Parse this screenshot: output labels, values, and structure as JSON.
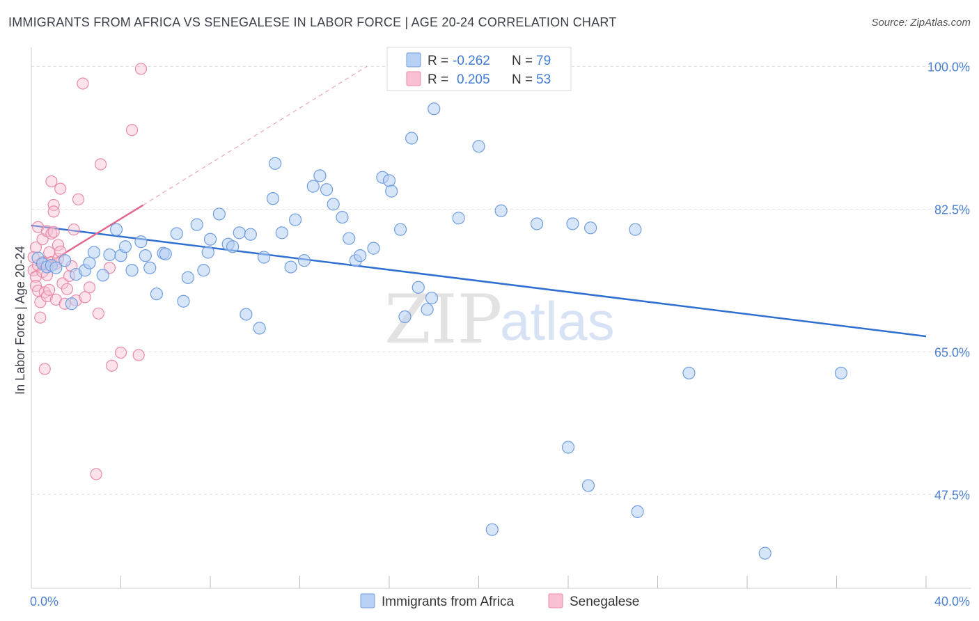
{
  "title": "IMMIGRANTS FROM AFRICA VS SENEGALESE IN LABOR FORCE | AGE 20-24 CORRELATION CHART",
  "source": "Source: ZipAtlas.com",
  "watermark": {
    "zip": "ZIP",
    "atlas": "atlas"
  },
  "legend": {
    "r_label": "R =",
    "n_label": "N =",
    "entries": [
      {
        "r": "-0.262",
        "n": "79",
        "fill": "#b7d0f4",
        "stroke": "#6f9de0"
      },
      {
        "r": "0.205",
        "n": "53",
        "fill": "#f9c0d3",
        "stroke": "#e98aa8"
      }
    ]
  },
  "chart_data": {
    "type": "scatter",
    "ylabel": "In Labor Force | Age 20-24",
    "xlim": [
      0,
      40
    ],
    "ylim": [
      36,
      102
    ],
    "x_tick_labels": [
      "0.0%",
      "40.0%"
    ],
    "y_ticks": [
      47.5,
      65.0,
      82.5,
      100.0
    ],
    "y_tick_labels": [
      "47.5%",
      "65.0%",
      "82.5%",
      "100.0%"
    ],
    "grid": "horizontal dashed",
    "series": [
      {
        "name": "Immigrants from Africa",
        "color": "#6f9de0",
        "fill": "rgba(183,208,244,0.55)",
        "line_color": "#2f6fd1",
        "trend": {
          "x": [
            0,
            40
          ],
          "y": [
            80.5,
            66.9
          ]
        },
        "points": [
          [
            0.3,
            76.5
          ],
          [
            0.5,
            75.8
          ],
          [
            0.7,
            75.4
          ],
          [
            0.9,
            75.6
          ],
          [
            1.1,
            75.3
          ],
          [
            1.5,
            76.2
          ],
          [
            1.8,
            70.9
          ],
          [
            2.0,
            74.5
          ],
          [
            2.4,
            75.0
          ],
          [
            2.6,
            75.9
          ],
          [
            2.8,
            77.2
          ],
          [
            3.2,
            74.4
          ],
          [
            3.5,
            76.9
          ],
          [
            3.8,
            80.0
          ],
          [
            4.0,
            76.8
          ],
          [
            4.2,
            77.9
          ],
          [
            4.5,
            75.0
          ],
          [
            4.9,
            78.5
          ],
          [
            5.1,
            76.8
          ],
          [
            5.3,
            75.3
          ],
          [
            5.6,
            72.1
          ],
          [
            5.9,
            77.1
          ],
          [
            6.0,
            77.0
          ],
          [
            6.5,
            79.5
          ],
          [
            6.8,
            71.2
          ],
          [
            7.0,
            74.1
          ],
          [
            7.4,
            80.6
          ],
          [
            7.7,
            75.0
          ],
          [
            7.9,
            77.2
          ],
          [
            8.0,
            78.8
          ],
          [
            8.4,
            81.9
          ],
          [
            8.8,
            78.2
          ],
          [
            9.0,
            77.9
          ],
          [
            9.3,
            79.6
          ],
          [
            9.6,
            69.6
          ],
          [
            9.8,
            79.4
          ],
          [
            10.2,
            67.9
          ],
          [
            10.4,
            76.6
          ],
          [
            10.8,
            83.8
          ],
          [
            10.9,
            88.1
          ],
          [
            11.2,
            79.6
          ],
          [
            11.6,
            75.4
          ],
          [
            11.8,
            81.2
          ],
          [
            12.2,
            76.2
          ],
          [
            12.6,
            85.3
          ],
          [
            12.9,
            86.6
          ],
          [
            13.2,
            84.9
          ],
          [
            13.5,
            83.1
          ],
          [
            13.9,
            81.5
          ],
          [
            14.2,
            78.9
          ],
          [
            14.5,
            76.2
          ],
          [
            14.7,
            76.8
          ],
          [
            15.3,
            77.7
          ],
          [
            15.7,
            86.4
          ],
          [
            16.0,
            86.0
          ],
          [
            16.1,
            84.7
          ],
          [
            16.5,
            80.0
          ],
          [
            16.7,
            69.3
          ],
          [
            17.0,
            91.2
          ],
          [
            17.3,
            72.9
          ],
          [
            17.7,
            70.2
          ],
          [
            17.9,
            71.6
          ],
          [
            18.0,
            94.8
          ],
          [
            18.0,
            100.0
          ],
          [
            19.1,
            81.4
          ],
          [
            20.0,
            90.2
          ],
          [
            21.0,
            100.0
          ],
          [
            21.0,
            82.3
          ],
          [
            22.6,
            80.7
          ],
          [
            24.2,
            80.7
          ],
          [
            25.0,
            80.2
          ],
          [
            27.0,
            80.0
          ],
          [
            24.0,
            53.3
          ],
          [
            24.9,
            48.6
          ],
          [
            20.6,
            43.2
          ],
          [
            27.1,
            45.4
          ],
          [
            29.4,
            62.4
          ],
          [
            32.8,
            40.3
          ],
          [
            36.2,
            62.4
          ]
        ]
      },
      {
        "name": "Senegalese",
        "color": "#e98aa8",
        "fill": "rgba(249,192,211,0.45)",
        "line_color": "#e0688f",
        "trend_solid": {
          "x": [
            0,
            5
          ],
          "y": [
            74.6,
            83.0
          ]
        },
        "trend_dashed": {
          "x": [
            5,
            15
          ],
          "y": [
            83.0,
            100.0
          ]
        },
        "points": [
          [
            0.1,
            75.0
          ],
          [
            0.1,
            76.6
          ],
          [
            0.2,
            77.8
          ],
          [
            0.2,
            74.2
          ],
          [
            0.2,
            73.1
          ],
          [
            0.3,
            80.3
          ],
          [
            0.3,
            72.5
          ],
          [
            0.3,
            75.6
          ],
          [
            0.4,
            69.2
          ],
          [
            0.4,
            71.1
          ],
          [
            0.5,
            74.8
          ],
          [
            0.5,
            76.0
          ],
          [
            0.5,
            78.8
          ],
          [
            0.6,
            62.9
          ],
          [
            0.6,
            72.3
          ],
          [
            0.6,
            75.9
          ],
          [
            0.7,
            74.4
          ],
          [
            0.7,
            79.8
          ],
          [
            0.7,
            71.8
          ],
          [
            0.8,
            72.6
          ],
          [
            0.8,
            77.2
          ],
          [
            0.9,
            76.0
          ],
          [
            0.9,
            79.5
          ],
          [
            0.9,
            85.9
          ],
          [
            1.0,
            83.0
          ],
          [
            1.0,
            79.7
          ],
          [
            1.0,
            82.2
          ],
          [
            1.1,
            75.8
          ],
          [
            1.1,
            71.4
          ],
          [
            1.2,
            76.4
          ],
          [
            1.2,
            78.1
          ],
          [
            1.3,
            77.3
          ],
          [
            1.3,
            85.0
          ],
          [
            1.4,
            73.4
          ],
          [
            1.5,
            70.9
          ],
          [
            1.6,
            72.7
          ],
          [
            1.7,
            74.3
          ],
          [
            1.8,
            75.5
          ],
          [
            1.9,
            80.0
          ],
          [
            2.0,
            71.3
          ],
          [
            2.1,
            83.7
          ],
          [
            2.3,
            97.9
          ],
          [
            2.4,
            71.7
          ],
          [
            2.6,
            72.9
          ],
          [
            2.9,
            50.0
          ],
          [
            3.0,
            69.7
          ],
          [
            3.1,
            88.0
          ],
          [
            3.5,
            75.3
          ],
          [
            3.6,
            63.3
          ],
          [
            4.0,
            64.9
          ],
          [
            4.5,
            92.2
          ],
          [
            4.8,
            64.6
          ],
          [
            4.9,
            99.7
          ]
        ]
      }
    ]
  }
}
